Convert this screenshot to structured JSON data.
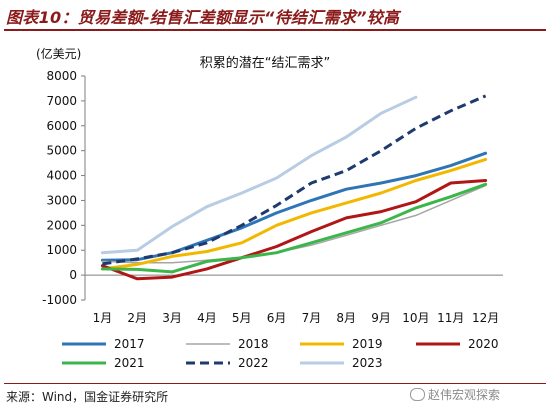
{
  "figure_title": "图表10：贸易差额-结售汇差额显示“待结汇需求”较高",
  "source": "来源：Wind，国金证券研究所",
  "watermark": "赵伟宏观探索",
  "chart_data": {
    "type": "line",
    "title": "积累的潜在“结汇需求”",
    "unit_label": "(亿美元)",
    "xlabel": "",
    "ylabel": "",
    "categories": [
      "1月",
      "2月",
      "3月",
      "4月",
      "5月",
      "6月",
      "7月",
      "8月",
      "9月",
      "10月",
      "11月",
      "12月"
    ],
    "ylim": [
      -1000,
      8000
    ],
    "yticks": [
      -1000,
      0,
      1000,
      2000,
      3000,
      4000,
      5000,
      6000,
      7000,
      8000
    ],
    "grid": false,
    "legend_position": "bottom",
    "series": [
      {
        "name": "2017",
        "color": "#2e75b6",
        "dash": false,
        "width": 3,
        "values": [
          600,
          620,
          900,
          1400,
          1900,
          2500,
          3000,
          3450,
          3700,
          4000,
          4400,
          4900
        ]
      },
      {
        "name": "2018",
        "color": "#a6a6a6",
        "dash": false,
        "width": 1.5,
        "values": [
          550,
          500,
          500,
          600,
          720,
          900,
          1200,
          1600,
          2000,
          2400,
          3000,
          3600
        ]
      },
      {
        "name": "2019",
        "color": "#f2b800",
        "dash": false,
        "width": 3,
        "values": [
          250,
          430,
          750,
          950,
          1300,
          2000,
          2500,
          2900,
          3300,
          3800,
          4200,
          4650
        ]
      },
      {
        "name": "2020",
        "color": "#b01616",
        "dash": false,
        "width": 3,
        "values": [
          380,
          -150,
          -80,
          250,
          700,
          1150,
          1750,
          2300,
          2550,
          2950,
          3700,
          3800
        ]
      },
      {
        "name": "2021",
        "color": "#3cb54a",
        "dash": false,
        "width": 3,
        "values": [
          250,
          230,
          130,
          550,
          700,
          900,
          1300,
          1700,
          2100,
          2700,
          3150,
          3650
        ]
      },
      {
        "name": "2022",
        "color": "#1f3a6e",
        "dash": true,
        "width": 3,
        "values": [
          450,
          650,
          900,
          1300,
          2000,
          2800,
          3700,
          4200,
          5000,
          5900,
          6600,
          7200
        ]
      },
      {
        "name": "2023",
        "color": "#b8cce4",
        "dash": false,
        "width": 3,
        "values": [
          900,
          1000,
          1950,
          2750,
          3300,
          3900,
          4800,
          5550,
          6500,
          7150,
          null,
          null
        ]
      }
    ]
  }
}
